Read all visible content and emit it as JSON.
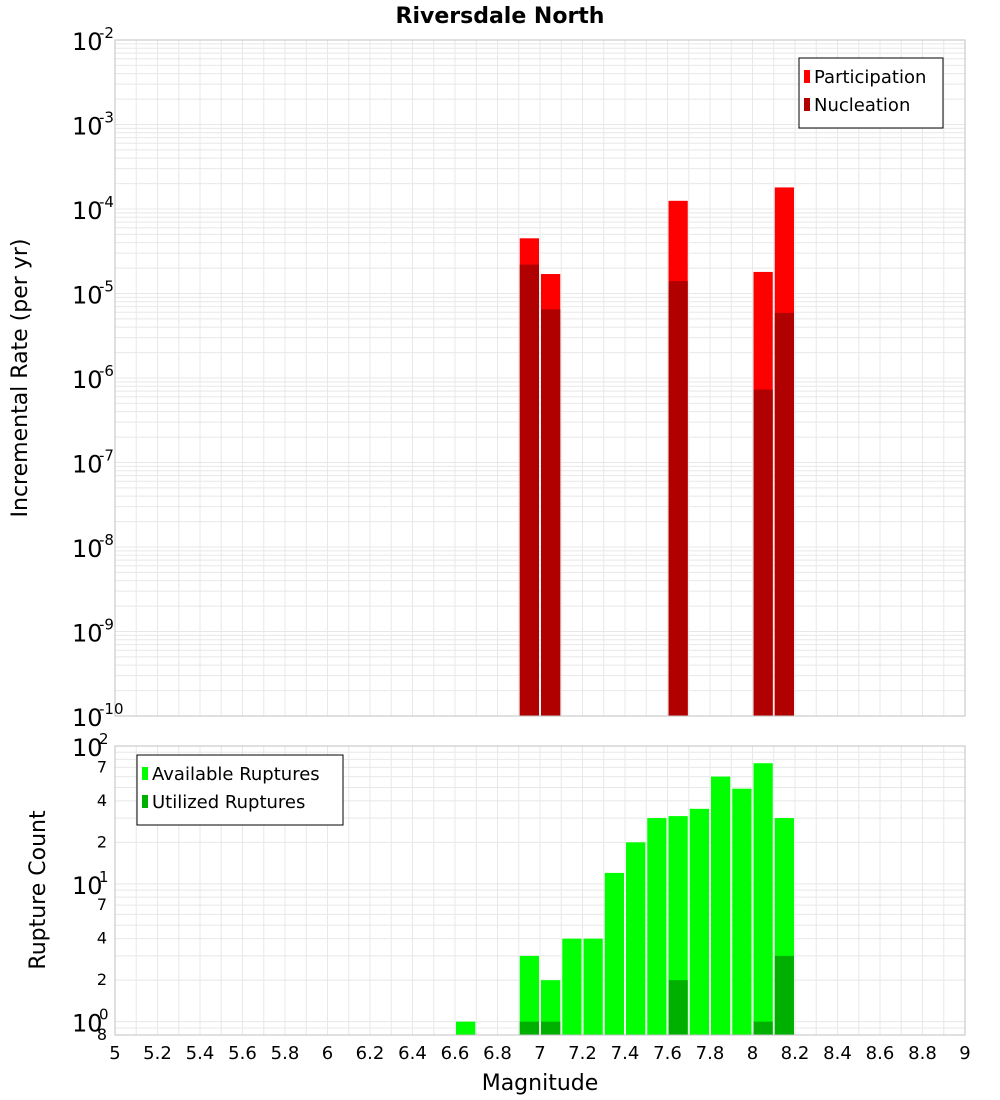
{
  "title": "Riversdale North",
  "xlabel": "Magnitude",
  "colors": {
    "participation": "#ff0000",
    "nucleation": "#b00000",
    "available": "#00ff00",
    "utilized": "#00b000",
    "grid": "#e8e8e8",
    "frame": "#c0c0c0"
  },
  "chart_data": [
    {
      "type": "bar",
      "title": "Riversdale North",
      "xlabel": "",
      "ylabel": "Incremental Rate (per yr)",
      "xlim": [
        5,
        9
      ],
      "ylim": [
        1e-10,
        0.01
      ],
      "yscale": "log",
      "grid": true,
      "legend_position": "top-right",
      "x_ticks": [],
      "y_tick_exponents": [
        -10,
        -9,
        -8,
        -7,
        -6,
        -5,
        -4,
        -3,
        -2
      ],
      "y_tick_base": "10",
      "bin_width": 0.1,
      "overlay": true,
      "series": [
        {
          "name": "Participation",
          "x": [
            6.95,
            7.05,
            7.65,
            8.05,
            8.15
          ],
          "values": [
            4.5e-05,
            1.7e-05,
            0.000125,
            1.8e-05,
            0.00018
          ]
        },
        {
          "name": "Nucleation",
          "x": [
            6.95,
            7.05,
            7.65,
            8.05,
            8.15
          ],
          "values": [
            2.2e-05,
            6.5e-06,
            1.4e-05,
            7.3e-07,
            5.9e-06
          ]
        }
      ]
    },
    {
      "type": "bar",
      "title": "",
      "xlabel": "Magnitude",
      "ylabel": "Rupture Count",
      "xlim": [
        5,
        9
      ],
      "ylim": [
        0.8,
        100
      ],
      "yscale": "log",
      "grid": true,
      "legend_position": "top-left",
      "x_ticks": [
        "5",
        "5.2",
        "5.4",
        "5.6",
        "5.8",
        "6",
        "6.2",
        "6.4",
        "6.6",
        "6.8",
        "7",
        "7.2",
        "7.4",
        "7.6",
        "7.8",
        "8",
        "8.2",
        "8.4",
        "8.6",
        "8.8",
        "9"
      ],
      "y_major_ticks": [
        {
          "base": "10",
          "exp": "2",
          "value": 100
        },
        {
          "base": "10",
          "exp": "1",
          "value": 10
        },
        {
          "base": "10",
          "exp": "0",
          "value": 1
        }
      ],
      "y_minor_ticks": [
        {
          "label": "7",
          "value": 70
        },
        {
          "label": "4",
          "value": 40
        },
        {
          "label": "2",
          "value": 20
        },
        {
          "label": "7",
          "value": 7
        },
        {
          "label": "4",
          "value": 4
        },
        {
          "label": "2",
          "value": 2
        },
        {
          "label": "8",
          "value": 0.8
        }
      ],
      "bin_width": 0.1,
      "overlay": true,
      "series": [
        {
          "name": "Available Ruptures",
          "x": [
            6.65,
            6.95,
            7.05,
            7.15,
            7.25,
            7.35,
            7.45,
            7.55,
            7.65,
            7.75,
            7.85,
            7.95,
            8.05,
            8.15
          ],
          "values": [
            1,
            3,
            2,
            4,
            4,
            12,
            20,
            30,
            31,
            35,
            60,
            49,
            75,
            30
          ]
        },
        {
          "name": "Utilized Ruptures",
          "x": [
            6.95,
            7.05,
            7.65,
            8.05,
            8.15
          ],
          "values": [
            1,
            1,
            2,
            1,
            3
          ]
        }
      ]
    }
  ]
}
